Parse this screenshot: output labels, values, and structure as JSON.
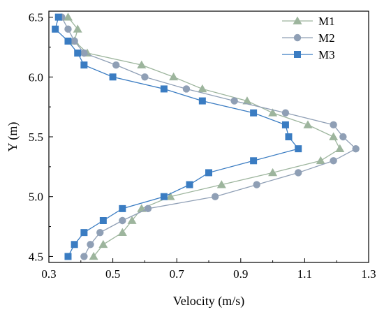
{
  "chart_data": {
    "type": "line",
    "xlabel": "Velocity (m/s)",
    "ylabel": "Y (m)",
    "xlim": [
      0.3,
      1.3
    ],
    "ylim": [
      4.45,
      6.55
    ],
    "xticks": [
      0.3,
      0.5,
      0.7,
      0.9,
      1.1,
      1.3
    ],
    "yticks": [
      4.5,
      5.0,
      5.5,
      6.0,
      6.5
    ],
    "x_tick_labels": [
      "0.3",
      "0.5",
      "0.7",
      "0.9",
      "1.1",
      "1.3"
    ],
    "y_tick_labels": [
      "4.5",
      "5.0",
      "5.5",
      "6.0",
      "6.5"
    ],
    "grid": false,
    "legend_position": "top-right",
    "series": [
      {
        "name": "M1",
        "marker": "triangle",
        "color": "#9db59d",
        "points": [
          [
            0.44,
            4.5
          ],
          [
            0.47,
            4.6
          ],
          [
            0.53,
            4.7
          ],
          [
            0.56,
            4.8
          ],
          [
            0.59,
            4.9
          ],
          [
            0.68,
            5.0
          ],
          [
            0.84,
            5.1
          ],
          [
            1.0,
            5.2
          ],
          [
            1.15,
            5.3
          ],
          [
            1.21,
            5.4
          ],
          [
            1.19,
            5.5
          ],
          [
            1.11,
            5.6
          ],
          [
            1.0,
            5.7
          ],
          [
            0.92,
            5.8
          ],
          [
            0.78,
            5.9
          ],
          [
            0.69,
            6.0
          ],
          [
            0.59,
            6.1
          ],
          [
            0.42,
            6.2
          ],
          [
            0.38,
            6.3
          ],
          [
            0.39,
            6.4
          ],
          [
            0.36,
            6.5
          ]
        ]
      },
      {
        "name": "M2",
        "marker": "circle",
        "color": "#8f9fb5",
        "points": [
          [
            0.41,
            4.5
          ],
          [
            0.43,
            4.6
          ],
          [
            0.46,
            4.7
          ],
          [
            0.53,
            4.8
          ],
          [
            0.61,
            4.9
          ],
          [
            0.82,
            5.0
          ],
          [
            0.95,
            5.1
          ],
          [
            1.08,
            5.2
          ],
          [
            1.19,
            5.3
          ],
          [
            1.26,
            5.4
          ],
          [
            1.22,
            5.5
          ],
          [
            1.19,
            5.6
          ],
          [
            1.04,
            5.7
          ],
          [
            0.88,
            5.8
          ],
          [
            0.73,
            5.9
          ],
          [
            0.6,
            6.0
          ],
          [
            0.51,
            6.1
          ],
          [
            0.41,
            6.2
          ],
          [
            0.38,
            6.3
          ],
          [
            0.36,
            6.4
          ],
          [
            0.34,
            6.5
          ]
        ]
      },
      {
        "name": "M3",
        "marker": "square",
        "color": "#3a7cc2",
        "points": [
          [
            0.36,
            4.5
          ],
          [
            0.38,
            4.6
          ],
          [
            0.41,
            4.7
          ],
          [
            0.47,
            4.8
          ],
          [
            0.53,
            4.9
          ],
          [
            0.66,
            5.0
          ],
          [
            0.74,
            5.1
          ],
          [
            0.8,
            5.2
          ],
          [
            0.94,
            5.3
          ],
          [
            1.08,
            5.4
          ],
          [
            1.05,
            5.5
          ],
          [
            1.04,
            5.6
          ],
          [
            0.94,
            5.7
          ],
          [
            0.78,
            5.8
          ],
          [
            0.66,
            5.9
          ],
          [
            0.5,
            6.0
          ],
          [
            0.41,
            6.1
          ],
          [
            0.39,
            6.2
          ],
          [
            0.36,
            6.3
          ],
          [
            0.32,
            6.4
          ],
          [
            0.33,
            6.5
          ]
        ]
      }
    ]
  }
}
